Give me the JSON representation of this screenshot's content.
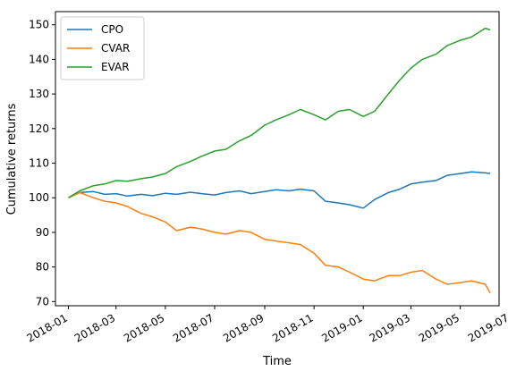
{
  "chart_data": {
    "type": "line",
    "title": "",
    "xlabel": "Time",
    "ylabel": "Cumulative returns",
    "x_range": [
      "2017-12-16",
      "2019-06-18"
    ],
    "ylim": [
      68.8,
      153.8
    ],
    "x_ticks": [
      "2018-01",
      "2018-03",
      "2018-05",
      "2018-07",
      "2018-09",
      "2018-11",
      "2019-01",
      "2019-03",
      "2019-05",
      "2019-07"
    ],
    "y_ticks": [
      70,
      80,
      90,
      100,
      110,
      120,
      130,
      140,
      150
    ],
    "grid": false,
    "legend_position": "top-left",
    "x": [
      "2018-01-01",
      "2018-01-15",
      "2018-02-01",
      "2018-02-15",
      "2018-03-01",
      "2018-03-15",
      "2018-04-01",
      "2018-04-15",
      "2018-05-01",
      "2018-05-15",
      "2018-06-01",
      "2018-06-15",
      "2018-07-01",
      "2018-07-15",
      "2018-08-01",
      "2018-08-15",
      "2018-09-01",
      "2018-09-15",
      "2018-10-01",
      "2018-10-15",
      "2018-11-01",
      "2018-11-15",
      "2018-12-01",
      "2018-12-15",
      "2019-01-01",
      "2019-01-15",
      "2019-02-01",
      "2019-02-15",
      "2019-03-01",
      "2019-03-15",
      "2019-04-01",
      "2019-04-15",
      "2019-05-01",
      "2019-05-15",
      "2019-06-01",
      "2019-06-07"
    ],
    "series": [
      {
        "name": "CPO",
        "color": "#1f77b4",
        "values": [
          100,
          101.5,
          101.8,
          101.0,
          101.2,
          100.5,
          101.0,
          100.6,
          101.3,
          101.0,
          101.6,
          101.2,
          100.8,
          101.5,
          102.0,
          101.2,
          101.8,
          102.3,
          102.0,
          102.5,
          102.0,
          99.0,
          98.5,
          98.0,
          97.0,
          99.5,
          101.5,
          102.5,
          104.0,
          104.5,
          105.0,
          106.5,
          107.0,
          107.5,
          107.2,
          107.0
        ]
      },
      {
        "name": "CVAR",
        "color": "#ff7f0e",
        "values": [
          100,
          101.5,
          100.0,
          99.0,
          98.5,
          97.5,
          95.5,
          94.5,
          93.0,
          90.5,
          91.5,
          91.0,
          90.0,
          89.5,
          90.5,
          90.0,
          88.0,
          87.5,
          87.0,
          86.5,
          84.0,
          80.5,
          80.0,
          78.5,
          76.5,
          76.0,
          77.5,
          77.5,
          78.5,
          79.0,
          76.5,
          75.0,
          75.5,
          76.0,
          75.0,
          72.5
        ]
      },
      {
        "name": "EVAR",
        "color": "#2ca02c",
        "values": [
          100,
          102.0,
          103.5,
          104.0,
          105.0,
          104.8,
          105.5,
          106.0,
          107.0,
          109.0,
          110.5,
          112.0,
          113.5,
          114.0,
          116.5,
          118.0,
          121.0,
          122.5,
          124.0,
          125.5,
          124.0,
          122.5,
          125.0,
          125.5,
          123.5,
          125.0,
          130.0,
          134.0,
          137.5,
          140.0,
          141.5,
          144.0,
          145.5,
          146.5,
          149.0,
          148.5
        ]
      }
    ]
  }
}
